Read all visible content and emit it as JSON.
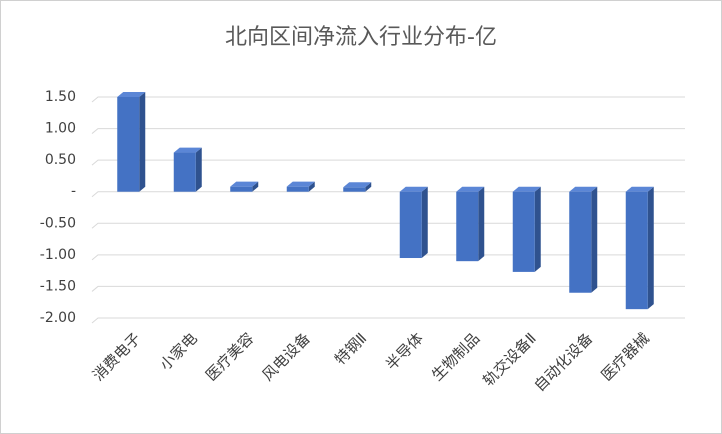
{
  "chart_data": {
    "type": "bar",
    "title": "北向区间净流入行业分布-亿",
    "categories": [
      "消费电子",
      "小家电",
      "医疗美容",
      "风电设备",
      "特钢Ⅱ",
      "半导体",
      "生物制品",
      "轨交设备Ⅱ",
      "自动化设备",
      "医疗器械"
    ],
    "values": [
      1.5,
      0.62,
      0.08,
      0.08,
      0.07,
      -1.05,
      -1.1,
      -1.27,
      -1.6,
      -1.86
    ],
    "color": "#4472c4",
    "ylim": [
      -2,
      1.5
    ],
    "yticks": [
      {
        "value": 1.5,
        "label": "1.50"
      },
      {
        "value": 1,
        "label": "1.00"
      },
      {
        "value": 0.5,
        "label": "0.50"
      },
      {
        "value": 0,
        "label": "-"
      },
      {
        "value": -0.5,
        "label": "-0.50"
      },
      {
        "value": -1,
        "label": "-1.00"
      },
      {
        "value": -1.5,
        "label": "-1.50"
      },
      {
        "value": -2,
        "label": "-2.00"
      }
    ],
    "grid": true
  }
}
